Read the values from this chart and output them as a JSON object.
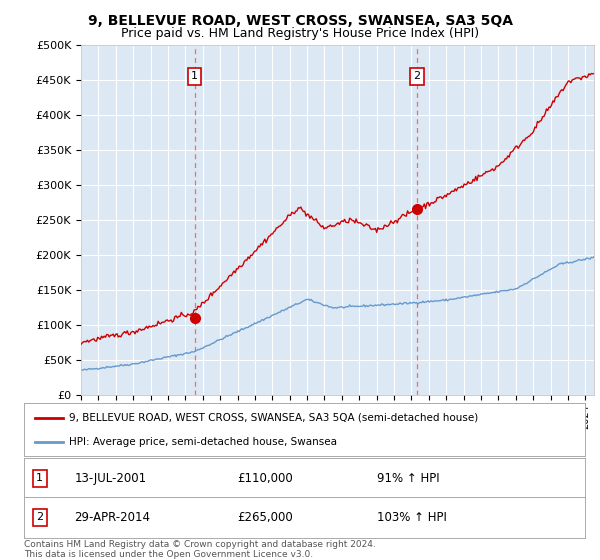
{
  "title": "9, BELLEVUE ROAD, WEST CROSS, SWANSEA, SA3 5QA",
  "subtitle": "Price paid vs. HM Land Registry's House Price Index (HPI)",
  "title_fontsize": 10,
  "subtitle_fontsize": 9,
  "background_color": "#ffffff",
  "plot_bg_color": "#dce9f5",
  "grid_color": "#ffffff",
  "ylim": [
    0,
    500000
  ],
  "yticks": [
    0,
    50000,
    100000,
    150000,
    200000,
    250000,
    300000,
    350000,
    400000,
    450000,
    500000
  ],
  "ytick_labels": [
    "£0",
    "£50K",
    "£100K",
    "£150K",
    "£200K",
    "£250K",
    "£300K",
    "£350K",
    "£400K",
    "£450K",
    "£500K"
  ],
  "xlim_start": 1995.0,
  "xlim_end": 2024.5,
  "sale1_x": 2001.53,
  "sale1_y": 110000,
  "sale1_label": "1",
  "sale1_date": "13-JUL-2001",
  "sale1_price": "£110,000",
  "sale1_hpi": "91% ↑ HPI",
  "sale2_x": 2014.33,
  "sale2_y": 265000,
  "sale2_label": "2",
  "sale2_date": "29-APR-2014",
  "sale2_price": "£265,000",
  "sale2_hpi": "103% ↑ HPI",
  "red_line_color": "#cc0000",
  "blue_line_color": "#6699cc",
  "marker_box_color": "#cc0000",
  "vline_color": "#ff6666",
  "legend_line1": "9, BELLEVUE ROAD, WEST CROSS, SWANSEA, SA3 5QA (semi-detached house)",
  "legend_line2": "HPI: Average price, semi-detached house, Swansea",
  "footnote": "Contains HM Land Registry data © Crown copyright and database right 2024.\nThis data is licensed under the Open Government Licence v3.0."
}
